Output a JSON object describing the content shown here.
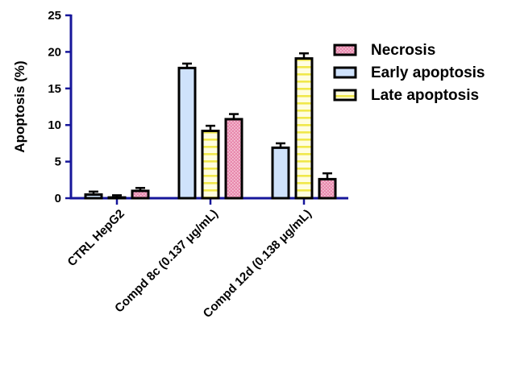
{
  "chart_data": {
    "type": "bar",
    "ylabel": "Apoptosis (%)",
    "xlabel": "",
    "ylim": [
      0,
      25
    ],
    "yticks": [
      0,
      5,
      10,
      15,
      20,
      25
    ],
    "grid": false,
    "legend_position": "right",
    "categories": [
      "CTRL HepG2",
      "Compd 8c (0.137 μg/mL)",
      "Compd 12d (0.138 μg/mL)"
    ],
    "series": [
      {
        "name": "Early apoptosis",
        "pattern": "plain",
        "color": "#cfe2fb",
        "values": [
          0.5,
          17.8,
          6.9
        ],
        "errors": [
          0.4,
          0.6,
          0.6
        ]
      },
      {
        "name": "Late apoptosis",
        "pattern": "dashes",
        "color": "#fffde0",
        "accent": "#f0e84a",
        "values": [
          0.1,
          9.2,
          19.1
        ],
        "errors": [
          0.3,
          0.7,
          0.7
        ]
      },
      {
        "name": "Necrosis",
        "pattern": "dots",
        "color": "#e889ad",
        "accent": "#f6c8d9",
        "values": [
          1.0,
          10.8,
          2.6
        ],
        "errors": [
          0.4,
          0.7,
          0.8
        ]
      }
    ],
    "legend_order": [
      "Necrosis",
      "Early apoptosis",
      "Late apoptosis"
    ]
  },
  "colors": {
    "axis": "#16169a",
    "bar_outline": "#000000"
  }
}
